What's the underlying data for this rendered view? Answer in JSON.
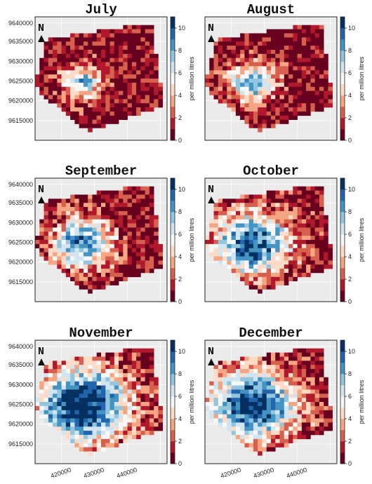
{
  "panels": [
    {
      "title": "July",
      "intensity": 0.25
    },
    {
      "title": "August",
      "intensity": 0.35
    },
    {
      "title": "September",
      "intensity": 0.55
    },
    {
      "title": "October",
      "intensity": 0.75
    },
    {
      "title": "November",
      "intensity": 1.0
    },
    {
      "title": "December",
      "intensity": 0.9
    }
  ],
  "north_label": "N",
  "axes": {
    "y_ticks": [
      "9640000",
      "9635000",
      "9630000",
      "9625000",
      "9620000",
      "9615000"
    ],
    "x_ticks": [
      "420000",
      "430000",
      "440000"
    ]
  },
  "colorbar": {
    "label": "per million litres",
    "ticks": [
      "0",
      "2",
      "4",
      "6",
      "8",
      "10"
    ],
    "range": [
      0,
      11
    ],
    "colors": [
      "#67001f",
      "#b2182b",
      "#d6604d",
      "#f4a582",
      "#fddbc7",
      "#f7f7f7",
      "#d1e5f0",
      "#92c5de",
      "#4393c3",
      "#2166ac",
      "#053061"
    ]
  },
  "colors": {
    "panel_bg": "#ebebeb",
    "grid": "#ffffff",
    "no_data": "#eeeeee"
  }
}
